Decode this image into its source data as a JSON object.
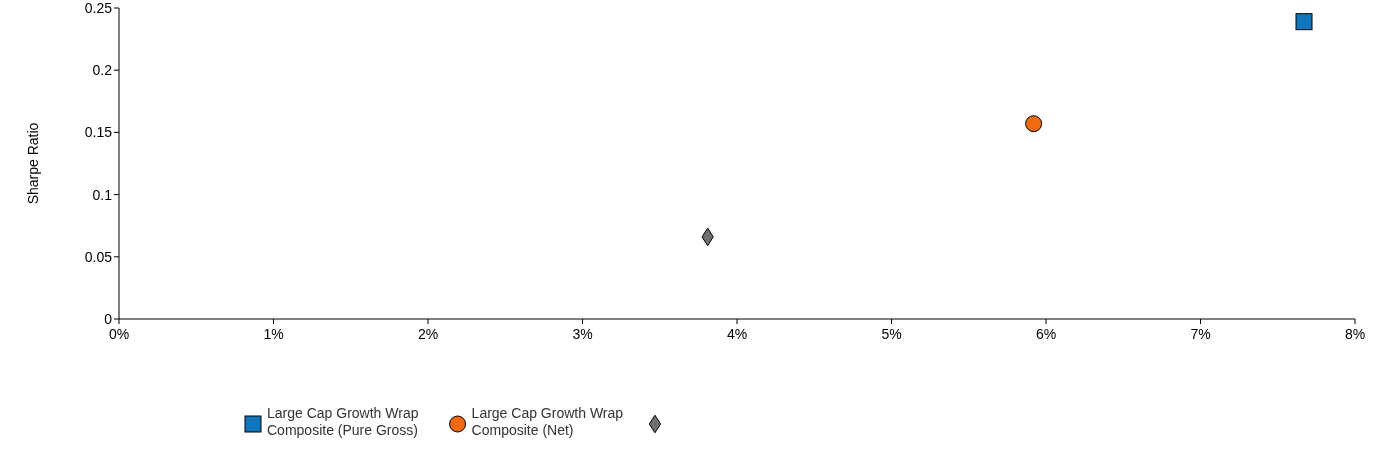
{
  "chart_data": {
    "type": "scatter",
    "ylabel": "Sharpe Ratio",
    "xlim": [
      0,
      8
    ],
    "ylim": [
      0,
      0.25
    ],
    "xticks": [
      {
        "value": 0,
        "label": "0%"
      },
      {
        "value": 1,
        "label": "1%"
      },
      {
        "value": 2,
        "label": "2%"
      },
      {
        "value": 3,
        "label": "3%"
      },
      {
        "value": 4,
        "label": "4%"
      },
      {
        "value": 5,
        "label": "5%"
      },
      {
        "value": 6,
        "label": "6%"
      },
      {
        "value": 7,
        "label": "7%"
      },
      {
        "value": 8,
        "label": "8%"
      }
    ],
    "yticks": [
      0,
      0.05,
      0.1,
      0.15,
      0.2,
      0.25
    ],
    "grid": false,
    "legend": "bottom",
    "series": [
      {
        "name": "Large Cap Growth Wrap Composite (Pure Gross)",
        "color": "#0f75bd",
        "marker": "square",
        "x": [
          7.67
        ],
        "values": [
          0.239
        ]
      },
      {
        "name": "Large Cap Growth Wrap Composite (Net)",
        "color": "#f26a0f",
        "marker": "circle",
        "x": [
          5.92
        ],
        "values": [
          0.157
        ]
      },
      {
        "color": "#707070",
        "marker": "diamond",
        "x": [
          3.81
        ],
        "values": [
          0.066
        ]
      }
    ]
  }
}
